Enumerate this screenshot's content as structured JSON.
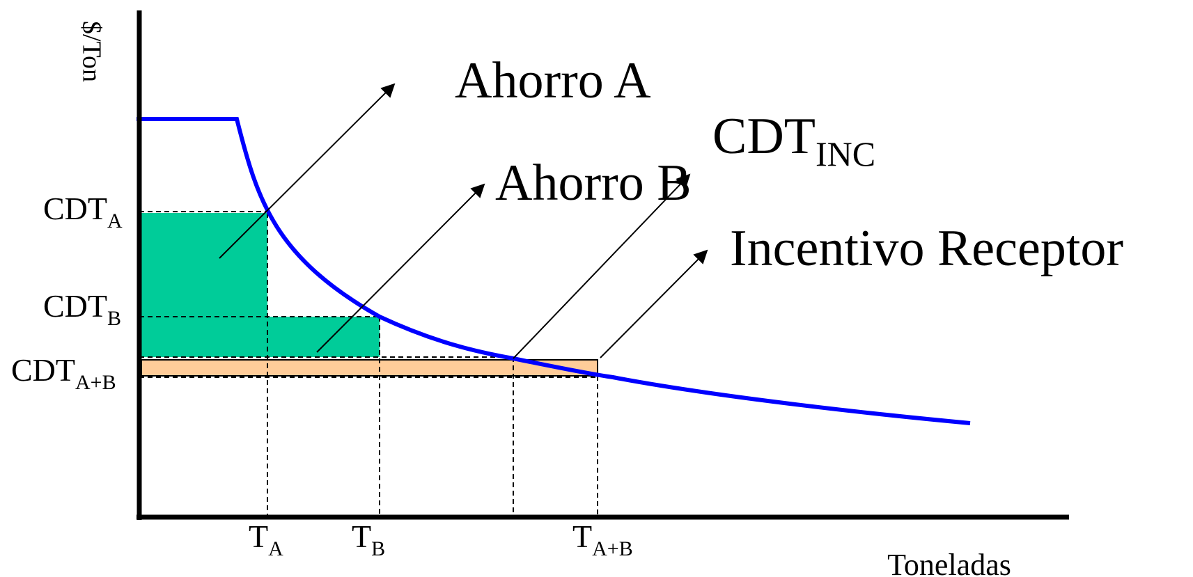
{
  "axes": {
    "y_label": "$/Ton",
    "x_label": "Toneladas"
  },
  "y_ticks": [
    {
      "main": "CDT",
      "sub": "A"
    },
    {
      "main": "CDT",
      "sub": "B"
    },
    {
      "main": "CDT",
      "sub": "A+B"
    }
  ],
  "x_ticks": [
    {
      "main": "T",
      "sub": "A"
    },
    {
      "main": "T",
      "sub": "B"
    },
    {
      "main": "T",
      "sub": "A+B"
    }
  ],
  "annotations": {
    "ahorro_a": "Ahorro A",
    "ahorro_b": "Ahorro B",
    "cdt_inc": {
      "main": "CDT",
      "sub": "INC"
    },
    "incentivo": "Incentivo Receptor"
  },
  "colors": {
    "curve": "#0000ff",
    "savings_fill": "#00cc99",
    "incentive_fill": "#ffcc99",
    "axis": "#000000"
  }
}
